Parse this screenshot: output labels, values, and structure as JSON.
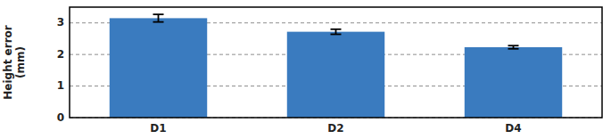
{
  "chart_data": {
    "type": "bar",
    "categories": [
      "D1",
      "D2",
      "D4"
    ],
    "values": [
      3.15,
      2.72,
      2.23
    ],
    "errors": [
      0.12,
      0.08,
      0.05
    ],
    "color": "#3a7bbf",
    "ylabel": "Height error\n(mm)",
    "ylim": [
      0,
      3.5
    ],
    "yticks": [
      0,
      1,
      2,
      3
    ],
    "grid": true
  }
}
